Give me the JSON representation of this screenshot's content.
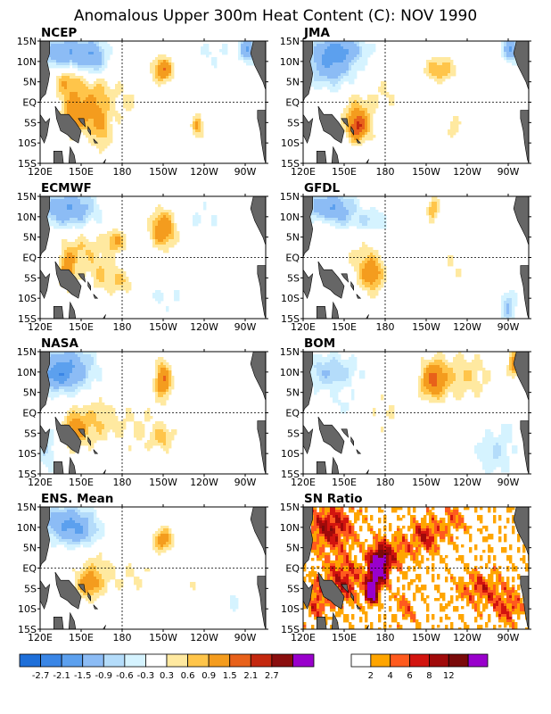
{
  "title": "Anomalous Upper 300m Heat Content (C): NOV 1990",
  "colors": {
    "anomaly": [
      "#1e6fd9",
      "#3a86e6",
      "#5ca0ee",
      "#8cbcf5",
      "#b4dcfa",
      "#d5f3ff",
      "#ffffff",
      "#ffe9a0",
      "#ffc54a",
      "#f49c1e",
      "#e8611a",
      "#c4280f",
      "#8a0e0e",
      "#9900cc"
    ],
    "sn": [
      "#ffffff",
      "#ffa500",
      "#ff5a1e",
      "#d2140f",
      "#a00a0a",
      "#7a0a0a",
      "#9900cc"
    ],
    "land": "#666666"
  },
  "chart_data": [
    {
      "type": "heatmap",
      "label": "NCEP",
      "xticks": [
        "120E",
        "150E",
        "180",
        "150W",
        "120W",
        "90W"
      ],
      "yticks": [
        "15N",
        "10N",
        "5N",
        "EQ",
        "5S",
        "10S",
        "15S"
      ],
      "scale": "anomaly",
      "blobs": [
        [
          140,
          5,
          7,
          3,
          0.9
        ],
        [
          160,
          3,
          10,
          3,
          0.6
        ],
        [
          160,
          -3,
          8,
          3,
          0.9
        ],
        [
          145,
          -3,
          6,
          3,
          1.2
        ],
        [
          165,
          -8,
          5,
          3,
          0.6
        ],
        [
          210,
          8,
          5,
          2,
          1.5
        ],
        [
          235,
          -6,
          3,
          2,
          0.9
        ],
        [
          185,
          0,
          8,
          4,
          0.3
        ],
        [
          140,
          12,
          14,
          3,
          -1.5
        ],
        [
          160,
          11,
          6,
          3,
          -0.9
        ],
        [
          245,
          12,
          15,
          3,
          -0.3
        ],
        [
          272,
          13,
          4,
          2,
          -1.5
        ]
      ]
    },
    {
      "type": "heatmap",
      "label": "JMA",
      "xticks": [
        "120E",
        "150E",
        "180",
        "150W",
        "120W",
        "90W"
      ],
      "yticks": [
        "15N",
        "10N",
        "5N",
        "EQ",
        "5S",
        "10S",
        "15S"
      ],
      "scale": "anomaly",
      "blobs": [
        [
          220,
          8,
          8,
          2,
          0.9
        ],
        [
          160,
          -4,
          8,
          4,
          0.9
        ],
        [
          160,
          -6,
          4,
          2,
          1.5
        ],
        [
          180,
          2,
          8,
          3,
          0.3
        ],
        [
          230,
          -6,
          3,
          2,
          0.6
        ],
        [
          140,
          10,
          12,
          4,
          -1.5
        ],
        [
          150,
          13,
          12,
          2,
          -0.9
        ],
        [
          272,
          13,
          4,
          2,
          -1.5
        ]
      ]
    },
    {
      "type": "heatmap",
      "label": "ECMWF",
      "xticks": [
        "120E",
        "150E",
        "180",
        "150W",
        "120W",
        "90W"
      ],
      "yticks": [
        "15N",
        "10N",
        "5N",
        "EQ",
        "5S",
        "10S",
        "15S"
      ],
      "scale": "anomaly",
      "blobs": [
        [
          210,
          7,
          6,
          3,
          1.5
        ],
        [
          150,
          2,
          10,
          3,
          0.6
        ],
        [
          165,
          -4,
          8,
          3,
          0.6
        ],
        [
          140,
          -3,
          4,
          3,
          1.2
        ],
        [
          180,
          -6,
          6,
          2,
          0.6
        ],
        [
          175,
          4,
          6,
          2,
          0.9
        ],
        [
          140,
          12,
          14,
          3,
          -1.5
        ],
        [
          240,
          10,
          12,
          3,
          -0.3
        ],
        [
          210,
          -10,
          15,
          3,
          -0.3
        ]
      ]
    },
    {
      "type": "heatmap",
      "label": "GFDL",
      "xticks": [
        "120E",
        "150E",
        "180",
        "150W",
        "120W",
        "90W"
      ],
      "yticks": [
        "15N",
        "10N",
        "5N",
        "EQ",
        "5S",
        "10S",
        "15S"
      ],
      "scale": "anomaly",
      "blobs": [
        [
          170,
          -4,
          6,
          3,
          1.2
        ],
        [
          160,
          0,
          12,
          4,
          0.3
        ],
        [
          215,
          12,
          3,
          2,
          0.9
        ],
        [
          230,
          -2,
          8,
          3,
          0.3
        ],
        [
          135,
          8,
          4,
          2,
          0.6
        ],
        [
          140,
          12,
          12,
          3,
          -1.5
        ],
        [
          170,
          9,
          10,
          2,
          -0.6
        ],
        [
          270,
          -12,
          4,
          3,
          -0.9
        ]
      ]
    },
    {
      "type": "heatmap",
      "label": "NASA",
      "xticks": [
        "120E",
        "150E",
        "180",
        "150W",
        "120W",
        "90W"
      ],
      "yticks": [
        "15N",
        "10N",
        "5N",
        "EQ",
        "5S",
        "10S",
        "15S"
      ],
      "scale": "anomaly",
      "blobs": [
        [
          210,
          8,
          4,
          3,
          1.5
        ],
        [
          160,
          -2,
          12,
          4,
          0.6
        ],
        [
          145,
          -4,
          6,
          3,
          0.9
        ],
        [
          195,
          -4,
          15,
          5,
          0.3
        ],
        [
          210,
          -6,
          5,
          2,
          0.6
        ],
        [
          140,
          11,
          13,
          4,
          -1.5
        ],
        [
          130,
          9,
          8,
          2,
          -0.9
        ],
        [
          125,
          -9,
          5,
          4,
          -0.6
        ]
      ]
    },
    {
      "type": "heatmap",
      "label": "BOM",
      "xticks": [
        "120E",
        "150E",
        "180",
        "150W",
        "120W",
        "90W"
      ],
      "yticks": [
        "15N",
        "10N",
        "5N",
        "EQ",
        "5S",
        "10S",
        "15S"
      ],
      "scale": "anomaly",
      "blobs": [
        [
          215,
          8,
          6,
          3,
          1.5
        ],
        [
          235,
          9,
          15,
          4,
          0.6
        ],
        [
          180,
          0,
          10,
          4,
          0.3
        ],
        [
          275,
          12,
          3,
          2,
          1.5
        ],
        [
          140,
          10,
          14,
          3,
          -0.9
        ],
        [
          150,
          2,
          10,
          2,
          -0.3
        ],
        [
          260,
          -10,
          10,
          4,
          -0.6
        ],
        [
          270,
          -4,
          5,
          2,
          -0.3
        ]
      ]
    },
    {
      "type": "heatmap",
      "label": "ENS. Mean",
      "xticks": [
        "120E",
        "150E",
        "180",
        "150W",
        "120W",
        "90W"
      ],
      "yticks": [
        "15N",
        "10N",
        "5N",
        "EQ",
        "5S",
        "10S",
        "15S"
      ],
      "scale": "anomaly",
      "blobs": [
        [
          210,
          7,
          5,
          2,
          1.2
        ],
        [
          160,
          -2,
          10,
          4,
          0.6
        ],
        [
          155,
          -4,
          5,
          2,
          0.9
        ],
        [
          190,
          -2,
          10,
          3,
          0.3
        ],
        [
          230,
          -4,
          4,
          2,
          0.3
        ],
        [
          140,
          11,
          14,
          3,
          -1.5
        ],
        [
          150,
          8,
          8,
          2,
          -0.6
        ],
        [
          260,
          -8,
          10,
          3,
          -0.3
        ]
      ]
    },
    {
      "type": "heatmap",
      "label": "SN Ratio",
      "xticks": [
        "120E",
        "150E",
        "180",
        "150W",
        "120W",
        "90W"
      ],
      "yticks": [
        "15N",
        "10N",
        "5N",
        "EQ",
        "5S",
        "10S",
        "15S"
      ],
      "scale": "sn",
      "blobs": [
        [
          175,
          0,
          5,
          3,
          12
        ],
        [
          170,
          -6,
          3,
          2,
          12
        ],
        [
          140,
          10,
          12,
          4,
          6
        ],
        [
          150,
          -3,
          10,
          4,
          5
        ],
        [
          185,
          4,
          10,
          3,
          4
        ],
        [
          210,
          8,
          8,
          3,
          5
        ],
        [
          250,
          -5,
          12,
          3,
          4
        ],
        [
          270,
          -10,
          8,
          3,
          4
        ],
        [
          130,
          -8,
          6,
          4,
          4
        ],
        [
          230,
          12,
          6,
          3,
          3
        ],
        [
          195,
          -10,
          6,
          3,
          3
        ]
      ]
    }
  ],
  "colorbars": {
    "anomaly": {
      "labels": [
        "-2.7",
        "-2.1",
        "-1.5",
        "-0.9",
        "-0.6",
        "-0.3",
        "0.3",
        "0.6",
        "0.9",
        "1.5",
        "2.1",
        "2.7"
      ]
    },
    "sn": {
      "labels": [
        "2",
        "4",
        "6",
        "8",
        "12"
      ]
    }
  }
}
